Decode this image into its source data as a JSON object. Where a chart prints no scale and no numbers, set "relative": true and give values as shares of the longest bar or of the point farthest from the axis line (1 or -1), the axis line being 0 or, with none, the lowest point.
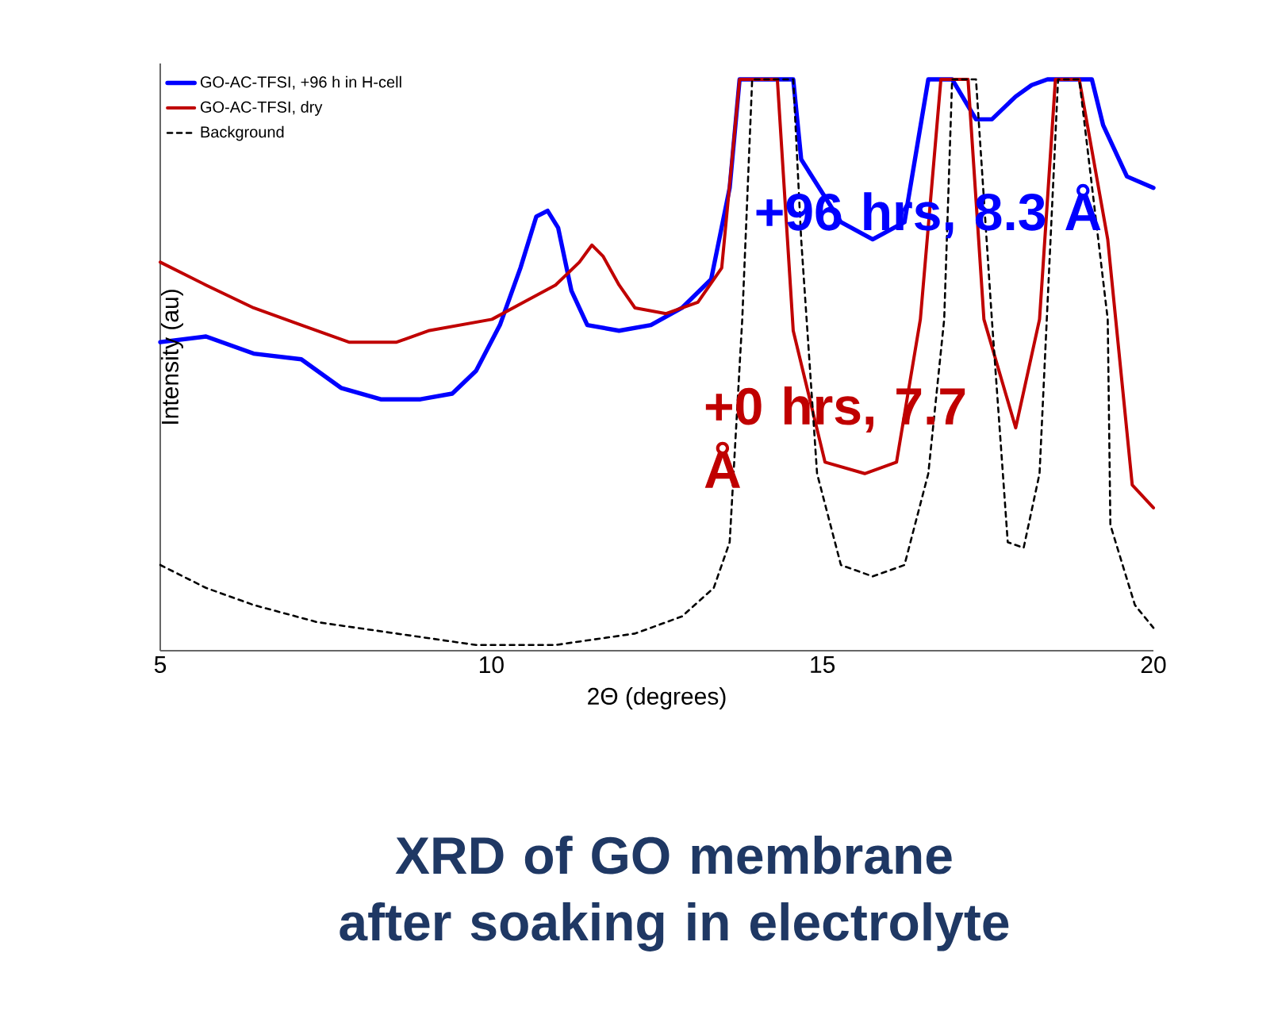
{
  "chart_data": {
    "type": "line",
    "title": "XRD of GO membrane after soaking in electrolyte",
    "xlabel": "2Θ (degrees)",
    "ylabel": "Intensity (au)",
    "relative": true,
    "xlim": [
      5,
      20
    ],
    "xticks": [
      5,
      10,
      15,
      20
    ],
    "legend": "top left",
    "grid": false,
    "annotations": [
      "+96 hrs, 8.3 Å",
      "+0 hrs, 7.7 Å"
    ],
    "series": [
      {
        "name": "GO-AC-TFSI, +96 h in H-cell",
        "color": "#0000ff",
        "line_style": "solid",
        "x": [
          5.0,
          5.69,
          6.41,
          7.13,
          7.73,
          8.33,
          8.93,
          9.41,
          9.77,
          10.13,
          10.44,
          10.68,
          10.85,
          11.01,
          11.21,
          11.45,
          11.93,
          12.41,
          12.88,
          13.32,
          13.6,
          13.75,
          14.08,
          14.56,
          14.68,
          15.28,
          15.76,
          16.24,
          16.6,
          16.96,
          17.32,
          17.56,
          17.92,
          18.16,
          18.4,
          18.88,
          19.07,
          19.24,
          19.6,
          20.0
        ],
        "values": [
          0.54,
          0.55,
          0.52,
          0.51,
          0.46,
          0.44,
          0.44,
          0.45,
          0.49,
          0.57,
          0.67,
          0.76,
          0.77,
          0.74,
          0.63,
          0.57,
          0.56,
          0.57,
          0.6,
          0.65,
          0.81,
          1,
          1,
          1,
          0.86,
          0.75,
          0.72,
          0.75,
          1,
          1,
          0.93,
          0.93,
          0.97,
          0.99,
          1,
          1,
          1,
          0.92,
          0.83,
          0.81
        ]
      },
      {
        "name": "GO-AC-TFSI, dry",
        "color": "#c00000",
        "line_style": "solid",
        "x": [
          5.0,
          5.69,
          6.41,
          7.13,
          7.85,
          8.57,
          9.05,
          9.53,
          10.01,
          10.49,
          10.97,
          11.33,
          11.52,
          11.69,
          11.93,
          12.17,
          12.64,
          13.12,
          13.48,
          13.75,
          14.32,
          14.56,
          15.04,
          15.64,
          16.12,
          16.48,
          16.79,
          17.2,
          17.44,
          17.92,
          18.28,
          18.52,
          18.88,
          19.31,
          19.68,
          20.0
        ],
        "values": [
          0.68,
          0.64,
          0.6,
          0.57,
          0.54,
          0.54,
          0.56,
          0.57,
          0.58,
          0.61,
          0.64,
          0.68,
          0.71,
          0.69,
          0.64,
          0.6,
          0.59,
          0.61,
          0.67,
          1,
          1,
          0.56,
          0.33,
          0.31,
          0.33,
          0.58,
          1,
          1,
          0.58,
          0.39,
          0.58,
          1,
          1,
          0.72,
          0.29,
          0.25
        ]
      },
      {
        "name": "Background",
        "color": "#000000",
        "line_style": "dashed",
        "x": [
          5.0,
          5.69,
          6.41,
          7.37,
          8.57,
          9.77,
          10.97,
          12.17,
          12.88,
          13.36,
          13.6,
          13.79,
          13.94,
          14.56,
          14.68,
          14.92,
          15.28,
          15.76,
          16.24,
          16.6,
          16.84,
          16.96,
          17.32,
          17.56,
          17.8,
          18.04,
          18.28,
          18.56,
          18.88,
          19.31,
          19.35,
          19.72,
          20.0
        ],
        "values": [
          0.15,
          0.11,
          0.08,
          0.05,
          0.03,
          0.01,
          0.01,
          0.03,
          0.06,
          0.11,
          0.19,
          0.58,
          1,
          1,
          0.72,
          0.31,
          0.15,
          0.13,
          0.15,
          0.31,
          0.58,
          1,
          1,
          0.58,
          0.19,
          0.18,
          0.31,
          1,
          1,
          0.58,
          0.22,
          0.08,
          0.04
        ]
      }
    ]
  }
}
